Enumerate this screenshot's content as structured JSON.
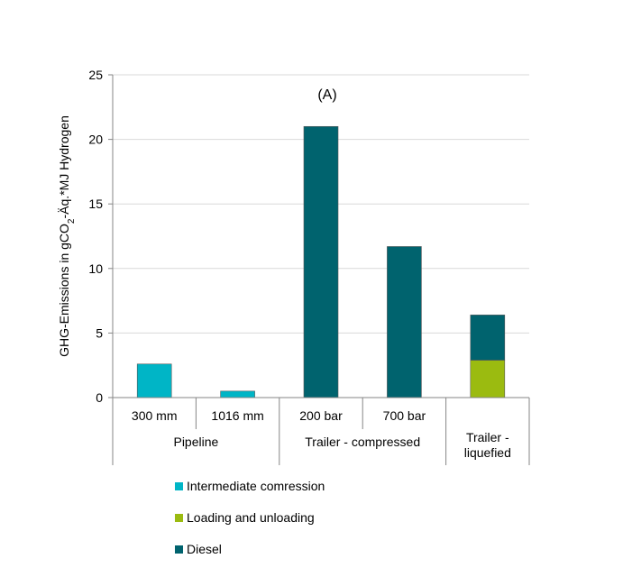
{
  "chart_data": {
    "type": "bar",
    "stacked": true,
    "annotation": "(A)",
    "ylabel": "GHG-Emissions in gCO₂-Äq.*MJ Hydrogen",
    "ylim": [
      0,
      25
    ],
    "yticks": [
      "0",
      "5",
      "10",
      "15",
      "20",
      "25"
    ],
    "grid": true,
    "legend_position": "bottom",
    "categories": [
      "300 mm",
      "1016 mm",
      "200 bar",
      "700 bar",
      ""
    ],
    "groups": [
      {
        "label": "Pipeline",
        "span": [
          0,
          1
        ]
      },
      {
        "label": "Trailer - compressed",
        "span": [
          2,
          3
        ]
      },
      {
        "label": "Trailer - liquefied",
        "lines": [
          "Trailer -",
          "liquefied"
        ],
        "span": [
          4,
          4
        ]
      }
    ],
    "series": [
      {
        "name": "Intermediate comression",
        "color": "#00b5c6",
        "values": [
          2.6,
          0.5,
          0,
          0,
          0
        ]
      },
      {
        "name": "Loading and unloading",
        "color": "#9bbb10",
        "values": [
          0,
          0,
          0,
          0,
          2.9
        ]
      },
      {
        "name": "Diesel",
        "color": "#00636e",
        "values": [
          0,
          0,
          21.0,
          11.7,
          3.5
        ]
      }
    ]
  }
}
